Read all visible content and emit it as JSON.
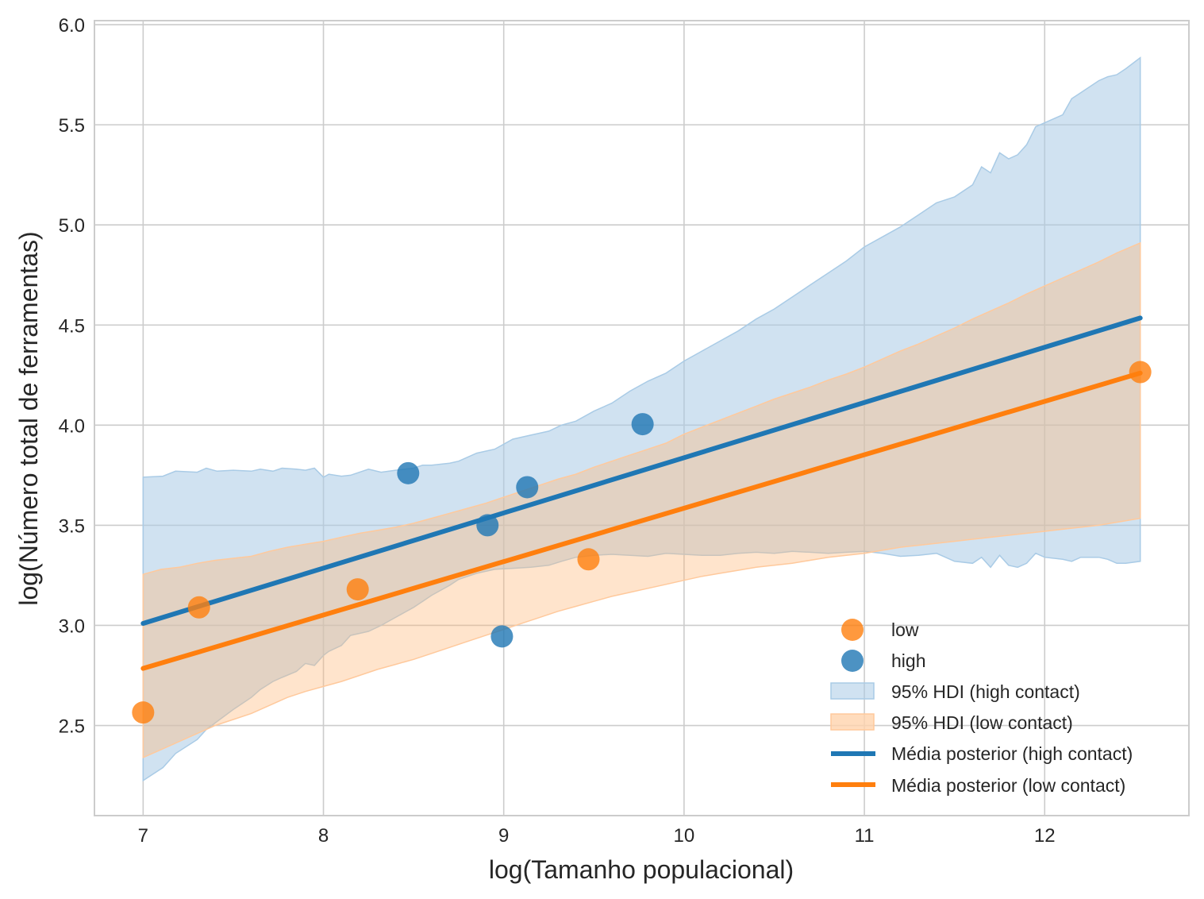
{
  "chart_data": {
    "type": "scatter",
    "xlabel": "log(Tamanho populacional)",
    "ylabel": "log(Número total de ferramentas)",
    "xlim": [
      6.73,
      12.8
    ],
    "ylim": [
      2.05,
      6.02
    ],
    "xticks": [
      7,
      8,
      9,
      10,
      11,
      12
    ],
    "yticks": [
      2.5,
      3.0,
      3.5,
      4.0,
      4.5,
      5.0,
      5.5,
      6.0
    ],
    "xtick_labels": [
      "7",
      "8",
      "9",
      "10",
      "11",
      "12"
    ],
    "ytick_labels": [
      "2.5",
      "3.0",
      "3.5",
      "4.0",
      "4.5",
      "5.0",
      "5.5",
      "6.0"
    ],
    "grid": true,
    "legend_position": "lower-right",
    "colors": {
      "low": "#ff7f0e",
      "high": "#1f77b4",
      "low_band": "#ffd3ad",
      "high_band": "#a9cbe6",
      "grid": "#cccccc",
      "frame": "#cccccc"
    },
    "points": {
      "low": {
        "label": "low",
        "x": [
          7.0,
          7.31,
          8.19,
          9.47,
          12.53
        ],
        "y": [
          2.565,
          3.09,
          3.18,
          3.33,
          4.265
        ]
      },
      "high": {
        "label": "high",
        "x": [
          8.47,
          8.91,
          8.99,
          9.13,
          9.77
        ],
        "y": [
          3.76,
          3.5,
          2.945,
          3.69,
          4.005
        ]
      }
    },
    "bands": {
      "high": {
        "label": "95% HDI (high contact)",
        "x": [
          7.0,
          7.11,
          7.18,
          7.3,
          7.35,
          7.41,
          7.5,
          7.6,
          7.65,
          7.72,
          7.77,
          7.85,
          7.9,
          7.95,
          8.0,
          8.03,
          8.1,
          8.15,
          8.25,
          8.32,
          8.4,
          8.5,
          8.55,
          8.6,
          8.7,
          8.75,
          8.85,
          8.95,
          9.05,
          9.15,
          9.25,
          9.32,
          9.4,
          9.5,
          9.6,
          9.7,
          9.8,
          9.9,
          10.0,
          10.1,
          10.2,
          10.3,
          10.4,
          10.5,
          10.6,
          10.7,
          10.8,
          10.9,
          11.0,
          11.1,
          11.2,
          11.3,
          11.4,
          11.5,
          11.6,
          11.65,
          11.7,
          11.75,
          11.8,
          11.85,
          11.9,
          11.95,
          12.0,
          12.1,
          12.15,
          12.2,
          12.3,
          12.35,
          12.4,
          12.45,
          12.53
        ],
        "upper": [
          3.74,
          3.745,
          3.77,
          3.765,
          3.785,
          3.77,
          3.775,
          3.77,
          3.78,
          3.77,
          3.785,
          3.78,
          3.775,
          3.785,
          3.74,
          3.755,
          3.745,
          3.75,
          3.78,
          3.765,
          3.775,
          3.785,
          3.8,
          3.8,
          3.81,
          3.82,
          3.86,
          3.88,
          3.93,
          3.95,
          3.97,
          4.0,
          4.02,
          4.07,
          4.11,
          4.17,
          4.22,
          4.26,
          4.32,
          4.37,
          4.42,
          4.47,
          4.53,
          4.58,
          4.64,
          4.7,
          4.76,
          4.82,
          4.89,
          4.94,
          4.99,
          5.05,
          5.11,
          5.14,
          5.2,
          5.29,
          5.26,
          5.36,
          5.33,
          5.35,
          5.4,
          5.49,
          5.51,
          5.55,
          5.63,
          5.66,
          5.72,
          5.74,
          5.75,
          5.78,
          5.835
        ],
        "lower": [
          2.225,
          2.29,
          2.36,
          2.43,
          2.48,
          2.52,
          2.58,
          2.64,
          2.68,
          2.72,
          2.74,
          2.77,
          2.81,
          2.8,
          2.85,
          2.87,
          2.9,
          2.95,
          2.97,
          3.0,
          3.04,
          3.09,
          3.12,
          3.15,
          3.2,
          3.23,
          3.26,
          3.28,
          3.285,
          3.29,
          3.3,
          3.32,
          3.34,
          3.35,
          3.355,
          3.35,
          3.345,
          3.36,
          3.355,
          3.35,
          3.35,
          3.36,
          3.365,
          3.36,
          3.37,
          3.365,
          3.36,
          3.365,
          3.37,
          3.36,
          3.345,
          3.35,
          3.36,
          3.32,
          3.31,
          3.34,
          3.29,
          3.35,
          3.3,
          3.29,
          3.31,
          3.36,
          3.34,
          3.33,
          3.32,
          3.34,
          3.34,
          3.33,
          3.31,
          3.31,
          3.32
        ]
      },
      "low": {
        "label": "95% HDI (low contact)",
        "x": [
          7.0,
          7.1,
          7.2,
          7.3,
          7.4,
          7.5,
          7.6,
          7.7,
          7.8,
          7.9,
          8.0,
          8.1,
          8.2,
          8.3,
          8.4,
          8.5,
          8.6,
          8.7,
          8.8,
          8.9,
          9.0,
          9.1,
          9.2,
          9.3,
          9.4,
          9.5,
          9.6,
          9.7,
          9.8,
          9.9,
          10.0,
          10.1,
          10.2,
          10.3,
          10.4,
          10.5,
          10.6,
          10.7,
          10.8,
          10.9,
          11.0,
          11.1,
          11.2,
          11.3,
          11.4,
          11.5,
          11.6,
          11.7,
          11.8,
          11.9,
          12.0,
          12.1,
          12.2,
          12.3,
          12.4,
          12.53
        ],
        "upper": [
          3.255,
          3.28,
          3.29,
          3.31,
          3.325,
          3.335,
          3.345,
          3.37,
          3.39,
          3.405,
          3.42,
          3.44,
          3.46,
          3.475,
          3.49,
          3.51,
          3.535,
          3.56,
          3.585,
          3.61,
          3.64,
          3.67,
          3.7,
          3.73,
          3.755,
          3.79,
          3.82,
          3.85,
          3.88,
          3.91,
          3.955,
          3.99,
          4.025,
          4.06,
          4.095,
          4.13,
          4.16,
          4.19,
          4.225,
          4.255,
          4.29,
          4.33,
          4.37,
          4.405,
          4.445,
          4.485,
          4.53,
          4.57,
          4.61,
          4.655,
          4.695,
          4.735,
          4.775,
          4.815,
          4.86,
          4.91
        ],
        "lower": [
          2.34,
          2.38,
          2.42,
          2.46,
          2.5,
          2.53,
          2.56,
          2.6,
          2.64,
          2.67,
          2.695,
          2.72,
          2.75,
          2.78,
          2.805,
          2.83,
          2.86,
          2.89,
          2.92,
          2.95,
          2.98,
          3.01,
          3.04,
          3.07,
          3.095,
          3.12,
          3.145,
          3.165,
          3.185,
          3.205,
          3.225,
          3.245,
          3.26,
          3.275,
          3.29,
          3.3,
          3.31,
          3.325,
          3.34,
          3.35,
          3.36,
          3.375,
          3.39,
          3.4,
          3.41,
          3.42,
          3.43,
          3.44,
          3.45,
          3.46,
          3.47,
          3.48,
          3.49,
          3.5,
          3.515,
          3.535
        ]
      }
    },
    "lines": {
      "high": {
        "label": "Média posterior (high contact)",
        "x": [
          7.0,
          12.53
        ],
        "y": [
          3.01,
          4.535
        ]
      },
      "low": {
        "label": "Média posterior (low contact)",
        "x": [
          7.0,
          12.53
        ],
        "y": [
          2.785,
          4.26
        ]
      }
    }
  }
}
